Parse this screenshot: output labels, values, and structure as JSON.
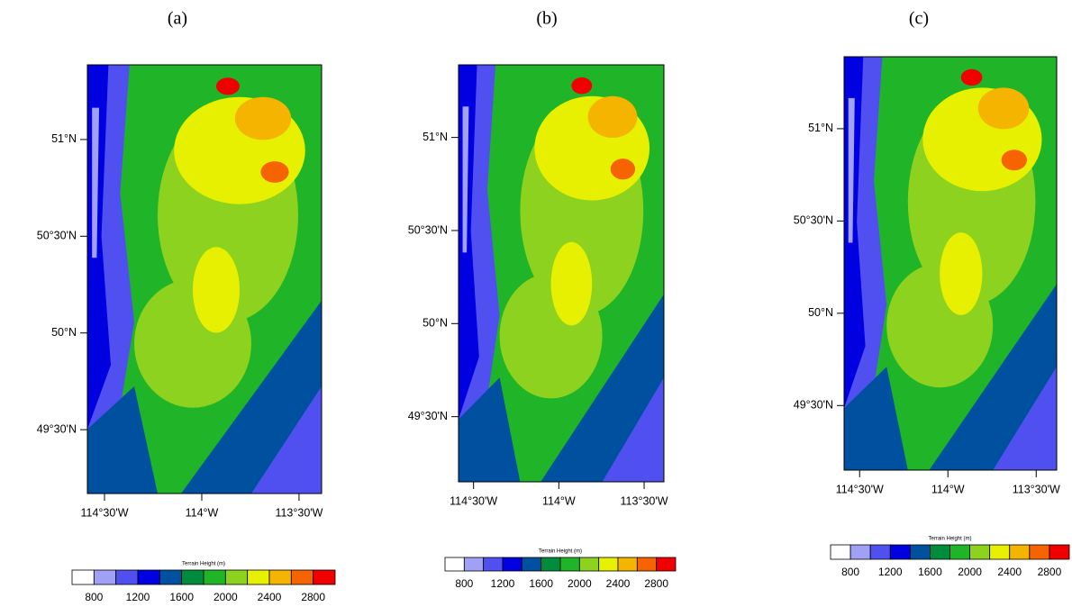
{
  "panels": [
    {
      "label": "(a)",
      "xlim": [
        -114.588,
        -113.384
      ],
      "ylim": [
        49.17,
        51.386
      ],
      "xticks": [
        {
          "value": -114.5,
          "label": "114°30'W"
        },
        {
          "value": -114,
          "label": "114°W"
        },
        {
          "value": -113.5,
          "label": "113°30'W"
        }
      ],
      "yticks": [
        {
          "value": 49.5,
          "label": "49°30'N"
        },
        {
          "value": 50,
          "label": "50°N"
        },
        {
          "value": 50.5,
          "label": "50°30'N"
        },
        {
          "value": 51,
          "label": "51°N"
        }
      ]
    },
    {
      "label": "(b)",
      "xlim": [
        -114.588,
        -113.384
      ],
      "ylim": [
        49.15,
        51.39
      ],
      "xticks": [
        {
          "value": -114.5,
          "label": "114°30'W"
        },
        {
          "value": -114,
          "label": "114°W"
        },
        {
          "value": -113.5,
          "label": "113°30'W"
        }
      ],
      "yticks": [
        {
          "value": 49.5,
          "label": "49°30'N"
        },
        {
          "value": 50,
          "label": "50°N"
        },
        {
          "value": 50.5,
          "label": "50°30'N"
        },
        {
          "value": 51,
          "label": "51°N"
        }
      ]
    },
    {
      "label": "(c)",
      "xlim": [
        -114.588,
        -113.384
      ],
      "ylim": [
        49.15,
        51.39
      ],
      "xticks": [
        {
          "value": -114.5,
          "label": "114°30'W"
        },
        {
          "value": -114,
          "label": "114°W"
        },
        {
          "value": -113.5,
          "label": "113°30'W"
        }
      ],
      "yticks": [
        {
          "value": 49.5,
          "label": "49°30'N"
        },
        {
          "value": 50,
          "label": "50°N"
        },
        {
          "value": 50.5,
          "label": "50°30'N"
        },
        {
          "value": 51,
          "label": "51°N"
        }
      ]
    }
  ],
  "colorbar": {
    "title": "Terrain Height (m)",
    "colors": [
      "#ffffff",
      "#a0a0f5",
      "#5050f0",
      "#0000e0",
      "#0050a0",
      "#008c3c",
      "#20b428",
      "#8cd21e",
      "#e6f000",
      "#f5b400",
      "#f56400",
      "#f00000"
    ],
    "ticks": [
      800,
      1200,
      1600,
      2000,
      2400,
      2800
    ]
  }
}
